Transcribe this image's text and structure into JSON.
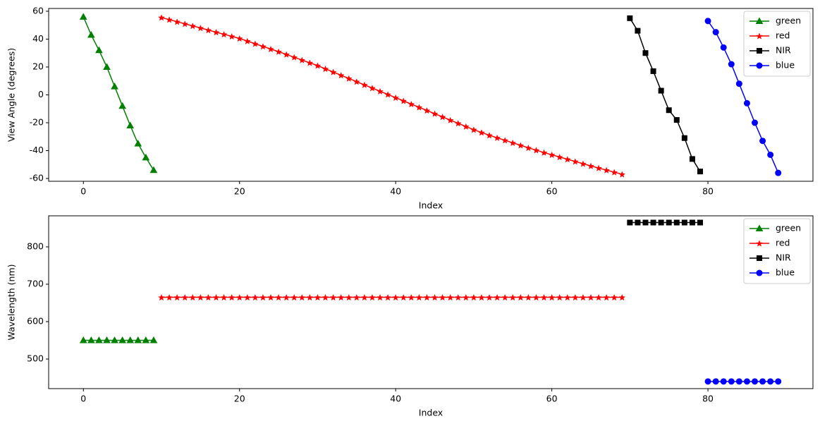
{
  "chart_data": [
    {
      "type": "line",
      "xlabel": "Index",
      "ylabel": "View Angle (degrees)",
      "xlim": [
        -4.45,
        93.45
      ],
      "ylim": [
        -62,
        62
      ],
      "xticks": [
        0,
        20,
        40,
        60,
        80
      ],
      "yticks": [
        -60,
        -40,
        -20,
        0,
        20,
        40,
        60
      ],
      "legend": "upper right",
      "series": [
        {
          "name": "green",
          "color": "#008000",
          "marker": "triangle",
          "x": [
            0,
            1,
            2,
            3,
            4,
            5,
            6,
            7,
            8,
            9
          ],
          "values": [
            56,
            43,
            32,
            20,
            6,
            -8,
            -22,
            -35,
            -45,
            -54
          ]
        },
        {
          "name": "red",
          "color": "#ff0000",
          "marker": "star",
          "x": [
            10,
            11,
            12,
            13,
            14,
            15,
            16,
            17,
            18,
            19,
            20,
            21,
            22,
            23,
            24,
            25,
            26,
            27,
            28,
            29,
            30,
            31,
            32,
            33,
            34,
            35,
            36,
            37,
            38,
            39,
            40,
            41,
            42,
            43,
            44,
            45,
            46,
            47,
            48,
            49,
            50,
            51,
            52,
            53,
            54,
            55,
            56,
            57,
            58,
            59,
            60,
            61,
            62,
            63,
            64,
            65,
            66,
            67,
            68,
            69
          ],
          "values": [
            55.5,
            54.0,
            52.5,
            51.0,
            49.5,
            48.0,
            46.5,
            45.0,
            43.5,
            42.0,
            40.5,
            38.6,
            36.7,
            34.8,
            32.9,
            31.0,
            29.0,
            27.0,
            25.0,
            23.0,
            21.0,
            18.7,
            16.4,
            14.1,
            11.8,
            9.5,
            7.2,
            4.9,
            2.6,
            0.3,
            -2.0,
            -4.3,
            -6.6,
            -8.9,
            -11.2,
            -13.5,
            -15.8,
            -18.1,
            -20.4,
            -22.7,
            -25.0,
            -27.0,
            -29.0,
            -30.8,
            -32.6,
            -34.4,
            -36.2,
            -38.0,
            -39.7,
            -41.4,
            -43.0,
            -44.6,
            -46.2,
            -47.8,
            -49.4,
            -51.0,
            -52.5,
            -54.0,
            -55.5,
            -57.0
          ]
        },
        {
          "name": "NIR",
          "color": "#000000",
          "marker": "square",
          "x": [
            70,
            71,
            72,
            73,
            74,
            75,
            76,
            77,
            78,
            79
          ],
          "values": [
            55,
            46,
            30,
            17,
            3,
            -11,
            -18,
            -31,
            -46,
            -55
          ]
        },
        {
          "name": "blue",
          "color": "#0000ff",
          "marker": "circle",
          "x": [
            80,
            81,
            82,
            83,
            84,
            85,
            86,
            87,
            88,
            89
          ],
          "values": [
            53,
            45,
            34,
            22,
            8,
            -6,
            -20,
            -33,
            -43,
            -56
          ]
        }
      ]
    },
    {
      "type": "line",
      "xlabel": "Index",
      "ylabel": "Wavelength (nm)",
      "xlim": [
        -4.45,
        93.45
      ],
      "ylim": [
        420.8,
        883
      ],
      "xticks": [
        0,
        20,
        40,
        60,
        80
      ],
      "yticks": [
        500,
        600,
        700,
        800
      ],
      "legend": "upper right",
      "series": [
        {
          "name": "green",
          "color": "#008000",
          "marker": "triangle",
          "x": [
            0,
            1,
            2,
            3,
            4,
            5,
            6,
            7,
            8,
            9
          ],
          "values": [
            550,
            550,
            550,
            550,
            550,
            550,
            550,
            550,
            550,
            550
          ]
        },
        {
          "name": "red",
          "color": "#ff0000",
          "marker": "star",
          "x": [
            10,
            11,
            12,
            13,
            14,
            15,
            16,
            17,
            18,
            19,
            20,
            21,
            22,
            23,
            24,
            25,
            26,
            27,
            28,
            29,
            30,
            31,
            32,
            33,
            34,
            35,
            36,
            37,
            38,
            39,
            40,
            41,
            42,
            43,
            44,
            45,
            46,
            47,
            48,
            49,
            50,
            51,
            52,
            53,
            54,
            55,
            56,
            57,
            58,
            59,
            60,
            61,
            62,
            63,
            64,
            65,
            66,
            67,
            68,
            69
          ],
          "values": [
            665,
            665,
            665,
            665,
            665,
            665,
            665,
            665,
            665,
            665,
            665,
            665,
            665,
            665,
            665,
            665,
            665,
            665,
            665,
            665,
            665,
            665,
            665,
            665,
            665,
            665,
            665,
            665,
            665,
            665,
            665,
            665,
            665,
            665,
            665,
            665,
            665,
            665,
            665,
            665,
            665,
            665,
            665,
            665,
            665,
            665,
            665,
            665,
            665,
            665,
            665,
            665,
            665,
            665,
            665,
            665,
            665,
            665,
            665,
            665
          ]
        },
        {
          "name": "NIR",
          "color": "#000000",
          "marker": "square",
          "x": [
            70,
            71,
            72,
            73,
            74,
            75,
            76,
            77,
            78,
            79
          ],
          "values": [
            865,
            865,
            865,
            865,
            865,
            865,
            865,
            865,
            865,
            865
          ]
        },
        {
          "name": "blue",
          "color": "#0000ff",
          "marker": "circle",
          "x": [
            80,
            81,
            82,
            83,
            84,
            85,
            86,
            87,
            88,
            89
          ],
          "values": [
            440,
            440,
            440,
            440,
            440,
            440,
            440,
            440,
            440,
            440
          ]
        }
      ]
    }
  ]
}
